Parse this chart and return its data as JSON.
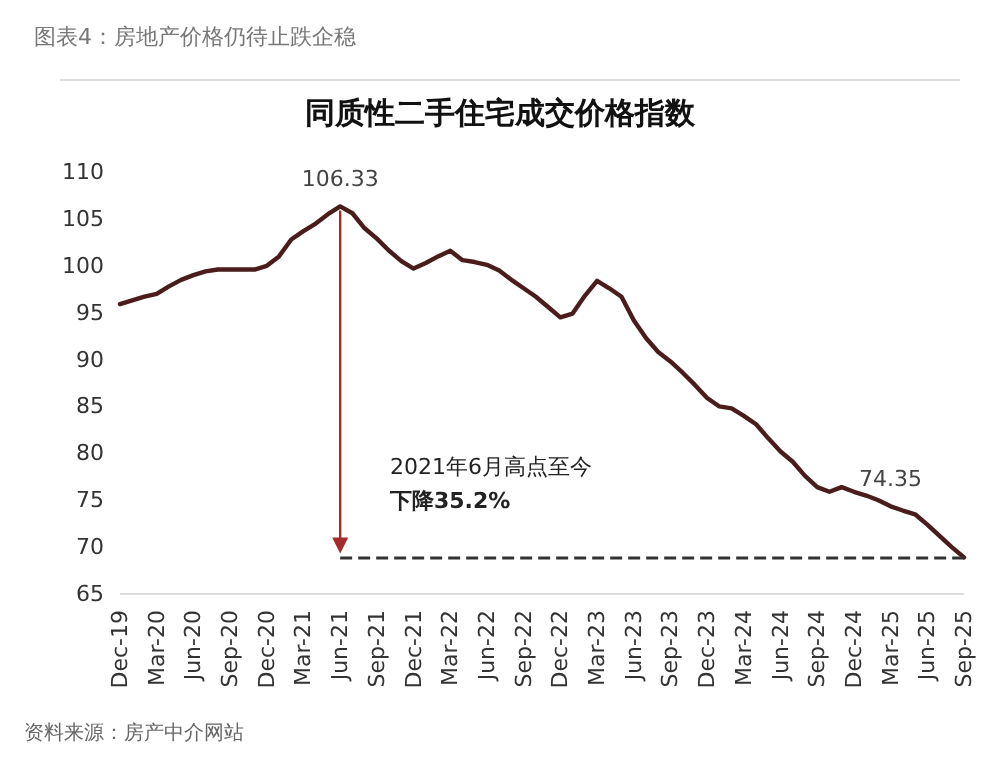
{
  "chart_data": {
    "type": "line",
    "subtitle": "图表4：房地产价格仍待止跌企稳",
    "title": "同质性二手住宅成交价格指数",
    "categories": [
      "Dec-19",
      null,
      null,
      "Mar-20",
      null,
      null,
      "Jun-20",
      null,
      null,
      "Sep-20",
      null,
      null,
      "Dec-20",
      null,
      null,
      "Mar-21",
      null,
      null,
      "Jun-21",
      null,
      null,
      "Sep-21",
      null,
      null,
      "Dec-21",
      null,
      null,
      "Mar-22",
      null,
      null,
      "Jun-22",
      null,
      null,
      "Sep-22",
      null,
      null,
      "Dec-22",
      null,
      null,
      "Mar-23",
      null,
      null,
      "Jun-23",
      null,
      null,
      "Sep-23",
      null,
      null,
      "Dec-23",
      null,
      null,
      "Mar-24",
      null,
      null,
      "Jun-24",
      null,
      null,
      "Sep-24",
      null,
      null,
      "Dec-24",
      null,
      null,
      "Mar-25",
      null,
      null,
      "Jun-25",
      null,
      null,
      "Sep-25"
    ],
    "series": [
      {
        "color": "#4a1c1c",
        "values": [
          95.9,
          96.3,
          96.7,
          97.0,
          97.8,
          98.5,
          99.0,
          99.4,
          99.6,
          99.6,
          99.6,
          99.6,
          100.0,
          101.0,
          102.8,
          103.7,
          104.5,
          105.5,
          106.33,
          105.6,
          104.0,
          102.9,
          101.6,
          100.5,
          99.7,
          100.3,
          101.0,
          101.6,
          100.6,
          100.4,
          100.1,
          99.5,
          98.5,
          97.6,
          96.7,
          95.6,
          94.5,
          94.9,
          96.8,
          98.4,
          97.6,
          96.7,
          94.2,
          92.3,
          90.8,
          89.8,
          88.6,
          87.3,
          85.9,
          85.0,
          84.8,
          84.0,
          83.1,
          81.6,
          80.2,
          79.1,
          77.6,
          76.4,
          75.9,
          76.4,
          75.9,
          75.5,
          75.0,
          74.35,
          73.9,
          73.5,
          72.4,
          71.2,
          70.0,
          68.9
        ]
      }
    ],
    "ylim": [
      65,
      110
    ],
    "yticks": [
      65,
      70,
      75,
      80,
      85,
      90,
      95,
      100,
      105,
      110
    ],
    "grid": false,
    "marker": "none",
    "line_style": "solid",
    "ref_lines": [
      {
        "axis": "y",
        "value": 68.9,
        "line_style": "dashed",
        "color": "#333333"
      }
    ],
    "annotations": [
      {
        "text": "106.33",
        "x": "Jun-21",
        "y": 106.33
      },
      {
        "text": "74.35",
        "x": "Mar-25",
        "y": 74.35
      },
      "2021年6月高点至今",
      "下降35.2%",
      "资料来源：房产中介网站"
    ]
  }
}
